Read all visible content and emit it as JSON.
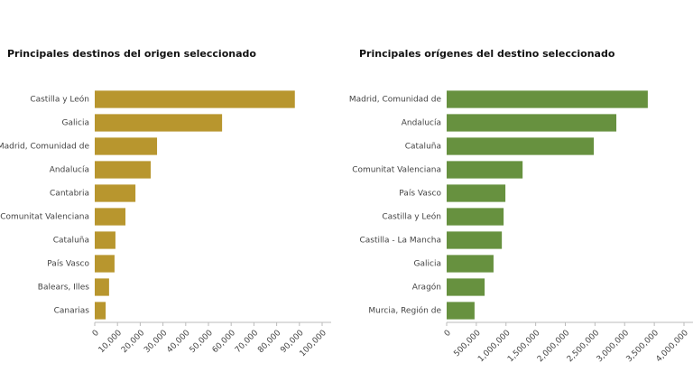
{
  "chart_data": [
    {
      "type": "bar",
      "orientation": "horizontal",
      "title": "Principales destinos del origen seleccionado",
      "categories": [
        "Castilla y León",
        "Galicia",
        "Madrid, Comunidad de",
        "Andalucía",
        "Cantabria",
        "Comunitat Valenciana",
        "Cataluña",
        "País Vasco",
        "Balears, Illes",
        "Canarias"
      ],
      "values": [
        88000,
        56000,
        27400,
        24600,
        17900,
        13500,
        9100,
        8700,
        6300,
        4800
      ],
      "color": "#b8962e",
      "xlim": [
        0,
        100000
      ],
      "xticks": [
        0,
        {
          "value": 10000,
          "label": "10,000"
        },
        {
          "value": 20000,
          "label": "20,000"
        },
        {
          "value": 30000,
          "label": "30,000"
        },
        {
          "value": 40000,
          "label": "40,000"
        },
        {
          "value": 50000,
          "label": "50,000"
        },
        {
          "value": 60000,
          "label": "60,000"
        },
        {
          "value": 70000,
          "label": "70,000"
        },
        {
          "value": 80000,
          "label": "80,000"
        },
        {
          "value": 90000,
          "label": "90,000"
        },
        {
          "value": 100000,
          "label": "100,000"
        }
      ]
    },
    {
      "type": "bar",
      "orientation": "horizontal",
      "title": "Principales orígenes del destino seleccionado",
      "categories": [
        "Madrid, Comunidad de",
        "Andalucía",
        "Cataluña",
        "Comunitat Valenciana",
        "País Vasco",
        "Castilla y León",
        "Castilla - La Mancha",
        "Galicia",
        "Aragón",
        "Murcia, Región de"
      ],
      "values": [
        3390000,
        2860000,
        2480000,
        1280000,
        990000,
        960000,
        930000,
        790000,
        640000,
        470000
      ],
      "color": "#67913f",
      "xlim": [
        0,
        4000000
      ],
      "xticks": [
        0,
        {
          "value": 500000,
          "label": "500,000"
        },
        {
          "value": 1000000,
          "label": "1,000,000"
        },
        {
          "value": 1500000,
          "label": "1,500,000"
        },
        {
          "value": 2000000,
          "label": "2,000,000"
        },
        {
          "value": 2500000,
          "label": "2,500,000"
        },
        {
          "value": 3000000,
          "label": "3,000,000"
        },
        {
          "value": 3500000,
          "label": "3,500,000"
        },
        {
          "value": 4000000,
          "label": "4,000,000"
        }
      ]
    }
  ]
}
